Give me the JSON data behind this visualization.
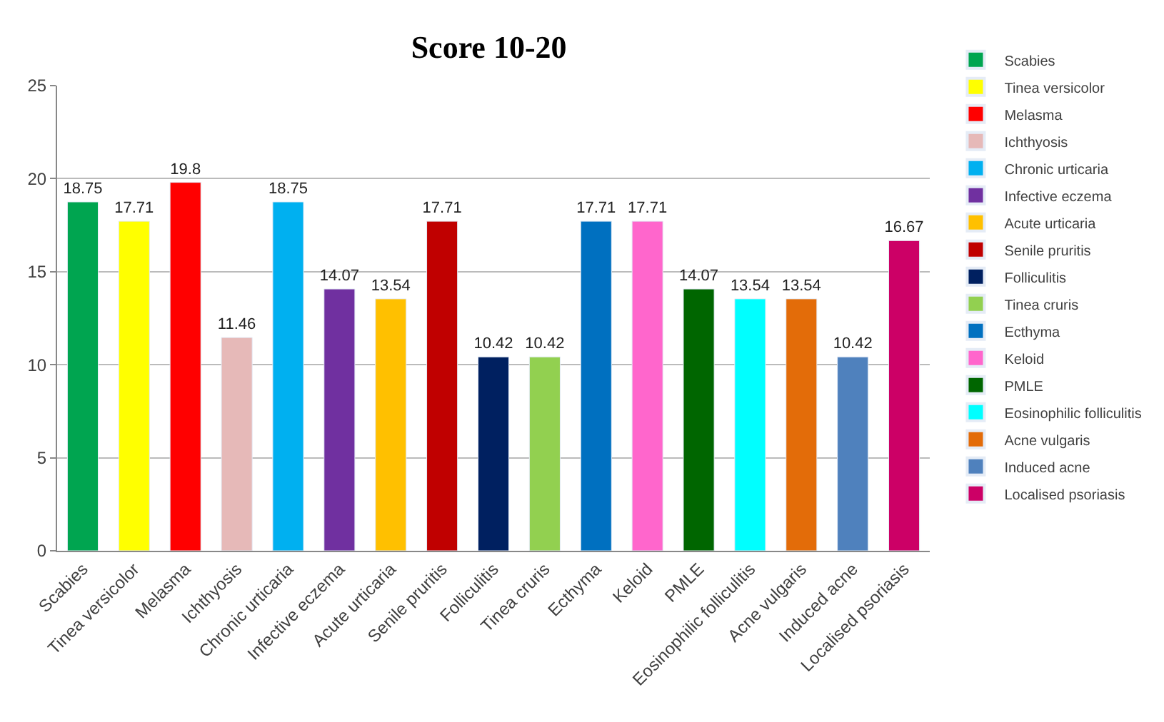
{
  "chart_data": {
    "type": "bar",
    "title": "Score 10-20",
    "categories": [
      "Scabies",
      "Tinea versicolor",
      "Melasma",
      "Ichthyosis",
      "Chronic urticaria",
      "Infective eczema",
      "Acute urticaria",
      "Senile pruritis",
      "Folliculitis",
      "Tinea cruris",
      "Ecthyma",
      "Keloid",
      "PMLE",
      "Eosinophilic folliculitis",
      "Acne vulgaris",
      "Induced acne",
      "Localised psoriasis"
    ],
    "series": [
      {
        "name": "Scabies",
        "color": "#00a550",
        "values": [
          18.75,
          null,
          null,
          null,
          null,
          null,
          null,
          null,
          null,
          null,
          null,
          null,
          null,
          null,
          null,
          null,
          null
        ],
        "value_labels": [
          "18.75",
          null,
          null,
          null,
          null,
          null,
          null,
          null,
          null,
          null,
          null,
          null,
          null,
          null,
          null,
          null,
          null
        ]
      },
      {
        "name": "Tinea versicolor",
        "color": "#ffff00",
        "values": [
          null,
          17.71,
          null,
          null,
          null,
          null,
          null,
          null,
          null,
          null,
          null,
          null,
          null,
          null,
          null,
          null,
          null
        ],
        "value_labels": [
          null,
          "17.71",
          null,
          null,
          null,
          null,
          null,
          null,
          null,
          null,
          null,
          null,
          null,
          null,
          null,
          null,
          null
        ]
      },
      {
        "name": "Melasma",
        "color": "#ff0000",
        "values": [
          null,
          null,
          19.8,
          null,
          null,
          null,
          null,
          null,
          null,
          null,
          null,
          null,
          null,
          null,
          null,
          null,
          null
        ],
        "value_labels": [
          null,
          null,
          "19.8",
          null,
          null,
          null,
          null,
          null,
          null,
          null,
          null,
          null,
          null,
          null,
          null,
          null,
          null
        ]
      },
      {
        "name": "Ichthyosis",
        "color": "#e6b9b8",
        "values": [
          null,
          null,
          null,
          11.46,
          null,
          null,
          null,
          null,
          null,
          null,
          null,
          null,
          null,
          null,
          null,
          null,
          null
        ],
        "value_labels": [
          null,
          null,
          null,
          "11.46",
          null,
          null,
          null,
          null,
          null,
          null,
          null,
          null,
          null,
          null,
          null,
          null,
          null
        ]
      },
      {
        "name": "Chronic urticaria",
        "color": "#00b0f0",
        "values": [
          null,
          null,
          null,
          null,
          18.75,
          null,
          null,
          null,
          null,
          null,
          null,
          null,
          null,
          null,
          null,
          null,
          null
        ],
        "value_labels": [
          null,
          null,
          null,
          null,
          "18.75",
          null,
          null,
          null,
          null,
          null,
          null,
          null,
          null,
          null,
          null,
          null,
          null
        ]
      },
      {
        "name": "Infective eczema",
        "color": "#7030a0",
        "values": [
          null,
          null,
          null,
          null,
          null,
          14.07,
          null,
          null,
          null,
          null,
          null,
          null,
          null,
          null,
          null,
          null,
          null
        ],
        "value_labels": [
          null,
          null,
          null,
          null,
          null,
          "14.07",
          null,
          null,
          null,
          null,
          null,
          null,
          null,
          null,
          null,
          null,
          null
        ]
      },
      {
        "name": "Acute urticaria",
        "color": "#ffc000",
        "values": [
          null,
          null,
          null,
          null,
          null,
          null,
          13.54,
          null,
          null,
          null,
          null,
          null,
          null,
          null,
          null,
          null,
          null
        ],
        "value_labels": [
          null,
          null,
          null,
          null,
          null,
          null,
          "13.54",
          null,
          null,
          null,
          null,
          null,
          null,
          null,
          null,
          null,
          null
        ]
      },
      {
        "name": "Senile pruritis",
        "color": "#c00000",
        "values": [
          null,
          null,
          null,
          null,
          null,
          null,
          null,
          17.71,
          null,
          null,
          null,
          null,
          null,
          null,
          null,
          null,
          null
        ],
        "value_labels": [
          null,
          null,
          null,
          null,
          null,
          null,
          null,
          "17.71",
          null,
          null,
          null,
          null,
          null,
          null,
          null,
          null,
          null
        ]
      },
      {
        "name": "Folliculitis",
        "color": "#002060",
        "values": [
          null,
          null,
          null,
          null,
          null,
          null,
          null,
          null,
          10.42,
          null,
          null,
          null,
          null,
          null,
          null,
          null,
          null
        ],
        "value_labels": [
          null,
          null,
          null,
          null,
          null,
          null,
          null,
          null,
          "10.42",
          null,
          null,
          null,
          null,
          null,
          null,
          null,
          null
        ]
      },
      {
        "name": "Tinea cruris",
        "color": "#92d050",
        "values": [
          null,
          null,
          null,
          null,
          null,
          null,
          null,
          null,
          null,
          10.42,
          null,
          null,
          null,
          null,
          null,
          null,
          null
        ],
        "value_labels": [
          null,
          null,
          null,
          null,
          null,
          null,
          null,
          null,
          null,
          "10.42",
          null,
          null,
          null,
          null,
          null,
          null,
          null
        ]
      },
      {
        "name": "Ecthyma",
        "color": "#0070c0",
        "values": [
          null,
          null,
          null,
          null,
          null,
          null,
          null,
          null,
          null,
          null,
          17.71,
          null,
          null,
          null,
          null,
          null,
          null
        ],
        "value_labels": [
          null,
          null,
          null,
          null,
          null,
          null,
          null,
          null,
          null,
          null,
          "17.71",
          null,
          null,
          null,
          null,
          null,
          null
        ]
      },
      {
        "name": "Keloid",
        "color": "#ff66cc",
        "values": [
          null,
          null,
          null,
          null,
          null,
          null,
          null,
          null,
          null,
          null,
          null,
          17.71,
          null,
          null,
          null,
          null,
          null
        ],
        "value_labels": [
          null,
          null,
          null,
          null,
          null,
          null,
          null,
          null,
          null,
          null,
          null,
          "17.71",
          null,
          null,
          null,
          null,
          null
        ]
      },
      {
        "name": "PMLE",
        "color": "#006600",
        "values": [
          null,
          null,
          null,
          null,
          null,
          null,
          null,
          null,
          null,
          null,
          null,
          null,
          14.07,
          null,
          null,
          null,
          null
        ],
        "value_labels": [
          null,
          null,
          null,
          null,
          null,
          null,
          null,
          null,
          null,
          null,
          null,
          null,
          "14.07",
          null,
          null,
          null,
          null
        ]
      },
      {
        "name": "Eosinophilic folliculitis",
        "color": "#00ffff",
        "values": [
          null,
          null,
          null,
          null,
          null,
          null,
          null,
          null,
          null,
          null,
          null,
          null,
          null,
          13.54,
          null,
          null,
          null
        ],
        "value_labels": [
          null,
          null,
          null,
          null,
          null,
          null,
          null,
          null,
          null,
          null,
          null,
          null,
          null,
          "13.54",
          null,
          null,
          null
        ]
      },
      {
        "name": "Acne vulgaris",
        "color": "#e36c09",
        "values": [
          null,
          null,
          null,
          null,
          null,
          null,
          null,
          null,
          null,
          null,
          null,
          null,
          null,
          null,
          13.54,
          null,
          null
        ],
        "value_labels": [
          null,
          null,
          null,
          null,
          null,
          null,
          null,
          null,
          null,
          null,
          null,
          null,
          null,
          null,
          "13.54",
          null,
          null
        ]
      },
      {
        "name": "Induced acne",
        "color": "#4f81bd",
        "values": [
          null,
          null,
          null,
          null,
          null,
          null,
          null,
          null,
          null,
          null,
          null,
          null,
          null,
          null,
          null,
          10.42,
          null
        ],
        "value_labels": [
          null,
          null,
          null,
          null,
          null,
          null,
          null,
          null,
          null,
          null,
          null,
          null,
          null,
          null,
          null,
          "10.42",
          null
        ]
      },
      {
        "name": "Localised psoriasis",
        "color": "#cc0066",
        "values": [
          null,
          null,
          null,
          null,
          null,
          null,
          null,
          null,
          null,
          null,
          null,
          null,
          null,
          null,
          null,
          null,
          16.67
        ],
        "value_labels": [
          null,
          null,
          null,
          null,
          null,
          null,
          null,
          null,
          null,
          null,
          null,
          null,
          null,
          null,
          null,
          null,
          "16.67"
        ]
      }
    ],
    "ylim": [
      0,
      25
    ],
    "yticks": [
      0,
      5,
      10,
      15,
      20,
      25
    ],
    "grid": "y",
    "legend": "right"
  }
}
